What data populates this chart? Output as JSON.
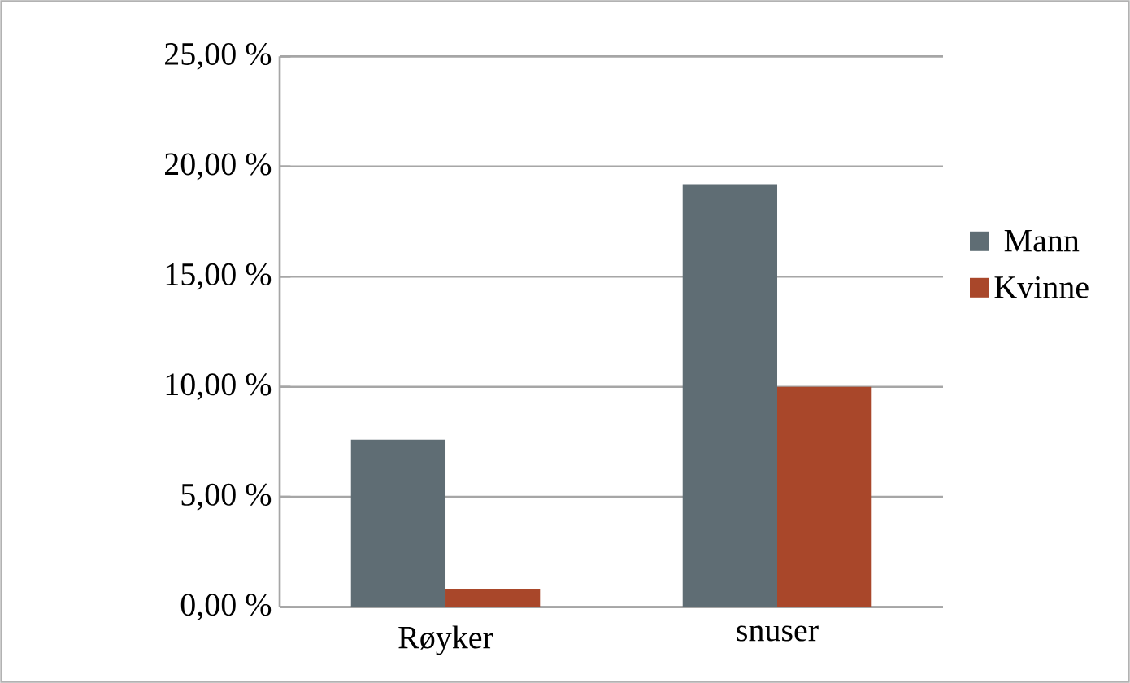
{
  "chart_data": {
    "type": "bar",
    "categories": [
      "Røyker",
      "snuser"
    ],
    "series": [
      {
        "name": "Mann",
        "color": "#5f6d74",
        "values": [
          7.6,
          19.2
        ]
      },
      {
        "name": "Kvinne",
        "color": "#a9472a",
        "values": [
          0.8,
          10.0
        ]
      }
    ],
    "ylim": [
      0,
      25
    ],
    "yticks": [
      {
        "value": 0,
        "label": "0,00 %"
      },
      {
        "value": 5,
        "label": "5,00 %"
      },
      {
        "value": 10,
        "label": "10,00 %"
      },
      {
        "value": 15,
        "label": "15,00 %"
      },
      {
        "value": 20,
        "label": "20,00 %"
      },
      {
        "value": 25,
        "label": "25,00 %"
      }
    ],
    "grid": "y",
    "legend": "right"
  }
}
